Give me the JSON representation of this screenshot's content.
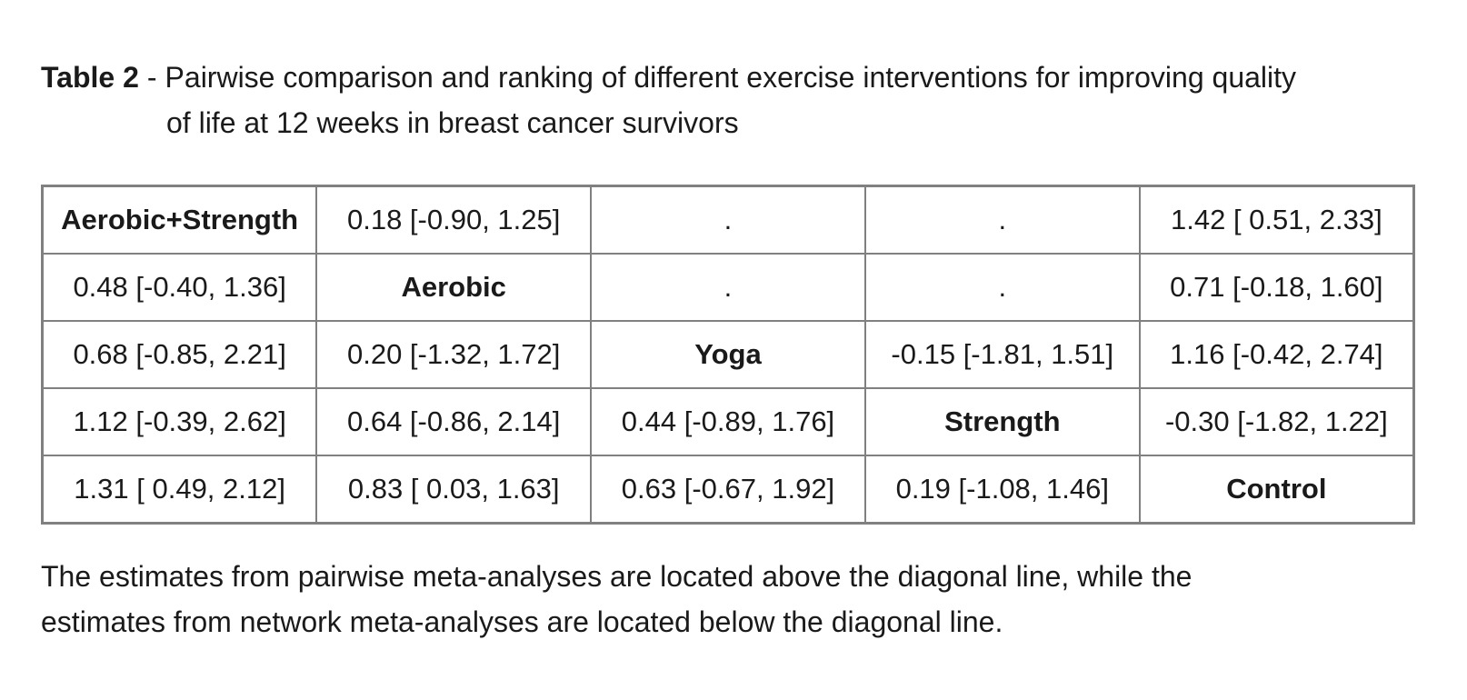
{
  "title": {
    "label": "Table 2",
    "separator": "-",
    "line1": "Pairwise comparison and ranking of different exercise interventions for improving quality",
    "line2": "of life at 12 weeks in breast cancer survivors"
  },
  "table": {
    "type": "league-table",
    "interventions": [
      "Aerobic+Strength",
      "Aerobic",
      "Yoga",
      "Strength",
      "Control"
    ],
    "rows": [
      {
        "cells": [
          "Aerobic+Strength",
          "0.18 [-0.90, 1.25]",
          ".",
          ".",
          "1.42 [ 0.51, 2.33]"
        ]
      },
      {
        "cells": [
          "0.48 [-0.40, 1.36]",
          "Aerobic",
          ".",
          ".",
          "0.71 [-0.18, 1.60]"
        ]
      },
      {
        "cells": [
          "0.68 [-0.85, 2.21]",
          "0.20 [-1.32, 1.72]",
          "Yoga",
          "-0.15 [-1.81, 1.51]",
          "1.16 [-0.42, 2.74]"
        ]
      },
      {
        "cells": [
          "1.12 [-0.39, 2.62]",
          "0.64 [-0.86, 2.14]",
          "0.44 [-0.89, 1.76]",
          "Strength",
          "-0.30 [-1.82, 1.22]"
        ]
      },
      {
        "cells": [
          "1.31 [ 0.49, 2.12]",
          "0.83 [ 0.03, 1.63]",
          "0.63 [-0.67, 1.92]",
          "0.19 [-1.08, 1.46]",
          "Control"
        ]
      }
    ]
  },
  "footnote": {
    "line1": "The estimates from pairwise meta-analyses are located above the diagonal line, while the",
    "line2": "estimates from network meta-analyses are located below the diagonal line."
  },
  "colors": {
    "background": "#ffffff",
    "text": "#1a1a1a",
    "table_border": "#808080"
  }
}
